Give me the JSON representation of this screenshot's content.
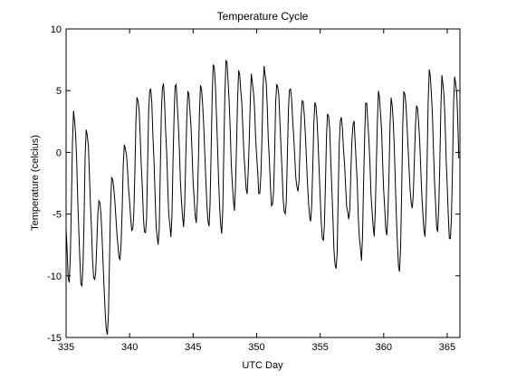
{
  "chart_data": {
    "type": "line",
    "title": "Temperature Cycle",
    "xlabel": "UTC Day",
    "ylabel": "Temperature (celcius)",
    "xlim": [
      335,
      366
    ],
    "ylim": [
      -15,
      10
    ],
    "xticks": [
      335,
      340,
      345,
      350,
      355,
      360,
      365
    ],
    "yticks": [
      -15,
      -10,
      -5,
      0,
      5,
      10
    ],
    "grid": false,
    "line_color": "#000000",
    "daily_cycle": [
      {
        "day": 335,
        "max": 3.2,
        "min": -10.5
      },
      {
        "day": 336,
        "max": 1.9,
        "min": -11.0
      },
      {
        "day": 337,
        "max": -3.8,
        "min": -10.5
      },
      {
        "day": 338,
        "max": -2.0,
        "min": -14.8
      },
      {
        "day": 339,
        "max": 0.6,
        "min": -8.7
      },
      {
        "day": 340,
        "max": 4.6,
        "min": -6.4
      },
      {
        "day": 341,
        "max": 5.4,
        "min": -6.8
      },
      {
        "day": 342,
        "max": 5.6,
        "min": -7.6
      },
      {
        "day": 343,
        "max": 5.5,
        "min": -6.7
      },
      {
        "day": 344,
        "max": 4.9,
        "min": -5.8
      },
      {
        "day": 345,
        "max": 5.4,
        "min": -5.6
      },
      {
        "day": 346,
        "max": 7.2,
        "min": -6.0
      },
      {
        "day": 347,
        "max": 7.5,
        "min": -6.5
      },
      {
        "day": 348,
        "max": 6.5,
        "min": -4.5
      },
      {
        "day": 349,
        "max": 6.1,
        "min": -3.2
      },
      {
        "day": 350,
        "max": 6.9,
        "min": -3.4
      },
      {
        "day": 351,
        "max": 5.7,
        "min": -4.5
      },
      {
        "day": 352,
        "max": 5.3,
        "min": -5.2
      },
      {
        "day": 353,
        "max": 4.3,
        "min": -3.2
      },
      {
        "day": 354,
        "max": 4.1,
        "min": -5.6
      },
      {
        "day": 355,
        "max": 3.3,
        "min": -7.3
      },
      {
        "day": 356,
        "max": 2.9,
        "min": -9.6
      },
      {
        "day": 357,
        "max": 2.5,
        "min": -5.4
      },
      {
        "day": 358,
        "max": 4.0,
        "min": -8.5
      },
      {
        "day": 359,
        "max": 4.8,
        "min": -6.5
      },
      {
        "day": 360,
        "max": 4.3,
        "min": -6.6
      },
      {
        "day": 361,
        "max": 5.0,
        "min": -9.7
      },
      {
        "day": 362,
        "max": 3.8,
        "min": -4.5
      },
      {
        "day": 363,
        "max": 6.6,
        "min": -6.7
      },
      {
        "day": 364,
        "max": 6.1,
        "min": -6.4
      },
      {
        "day": 365,
        "max": 6.2,
        "min": -7.2
      }
    ]
  }
}
